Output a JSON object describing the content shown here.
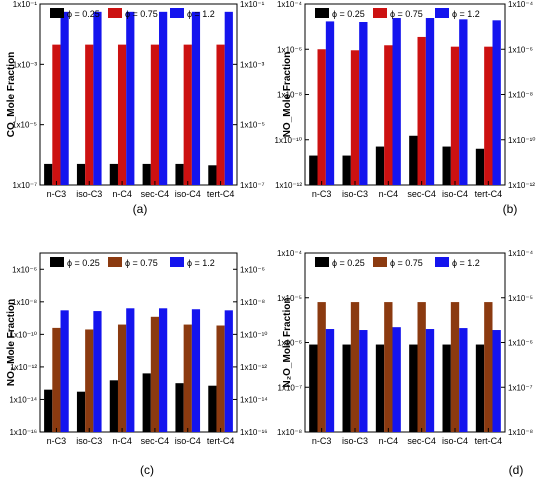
{
  "colors": {
    "phi025": "#000000",
    "phi075": "#cc1111",
    "phi075_b": "#8b3a10",
    "phi12": "#1414ee"
  },
  "legend": {
    "phi025": "ϕ = 0.25",
    "phi075": "ϕ = 0.75",
    "phi12": "ϕ = 1.2"
  },
  "chart_data": [
    {
      "type": "bar",
      "panel_label": "(a)",
      "ylabel": "CO_Mole Fraction",
      "yscale": "log",
      "ylim": [
        1e-07,
        0.1
      ],
      "yticks": [
        "1x10⁻⁷",
        "1x10⁻⁵",
        "1x10⁻³",
        "1x10⁻¹"
      ],
      "categories": [
        "n-C3",
        "iso-C3",
        "n-C4",
        "sec-C4",
        "iso-C4",
        "tert-C4"
      ],
      "legend_position": "top",
      "series": [
        {
          "name": "ϕ = 0.25",
          "values": [
            5e-07,
            5e-07,
            5e-07,
            5e-07,
            5e-07,
            4.5e-07
          ]
        },
        {
          "name": "ϕ = 0.75",
          "values": [
            0.0045,
            0.0045,
            0.0045,
            0.0045,
            0.0045,
            0.0045
          ]
        },
        {
          "name": "ϕ = 1.2",
          "values": [
            0.055,
            0.055,
            0.055,
            0.055,
            0.055,
            0.055
          ]
        }
      ]
    },
    {
      "type": "bar",
      "panel_label": "(b)",
      "ylabel": "NO_Mole Fraction",
      "yscale": "log",
      "ylim": [
        1e-12,
        0.0001
      ],
      "yticks": [
        "1x10⁻¹²",
        "1x10⁻¹⁰",
        "1x10⁻⁸",
        "1x10⁻⁶",
        "1x10⁻⁴"
      ],
      "categories": [
        "n-C3",
        "iso-C3",
        "n-C4",
        "sec-C4",
        "iso-C4",
        "tert-C4"
      ],
      "legend_position": "top",
      "series": [
        {
          "name": "ϕ = 0.25",
          "values": [
            2e-11,
            2e-11,
            5e-11,
            1.5e-10,
            5e-11,
            4e-11
          ]
        },
        {
          "name": "ϕ = 0.75",
          "values": [
            1e-06,
            9e-07,
            1.5e-06,
            3.5e-06,
            1.3e-06,
            1.3e-06
          ]
        },
        {
          "name": "ϕ = 1.2",
          "values": [
            1.7e-05,
            1.6e-05,
            2.4e-05,
            2.4e-05,
            2.1e-05,
            1.9e-05
          ]
        }
      ]
    },
    {
      "type": "bar",
      "panel_label": "(c)",
      "ylabel": "NO₂ Mole Fraction",
      "yscale": "log",
      "ylim": [
        1e-16,
        1e-05
      ],
      "yticks": [
        "1x10⁻¹⁶",
        "1x10⁻¹⁴",
        "1x10⁻¹²",
        "1x10⁻¹⁰",
        "1x10⁻⁸",
        "1x10⁻⁶"
      ],
      "categories": [
        "n-C3",
        "iso-C3",
        "n-C4",
        "sec-C4",
        "iso-C4",
        "tert-C4"
      ],
      "legend_position": "top",
      "series": [
        {
          "name": "ϕ = 0.25",
          "values": [
            4e-14,
            3e-14,
            1.5e-13,
            4e-13,
            1e-13,
            7e-14
          ]
        },
        {
          "name": "ϕ = 0.75",
          "values": [
            2.5e-10,
            2e-10,
            4e-10,
            1.2e-09,
            4e-10,
            3.5e-10
          ]
        },
        {
          "name": "ϕ = 1.2",
          "values": [
            3e-09,
            2.7e-09,
            4e-09,
            4e-09,
            3.5e-09,
            3e-09
          ]
        }
      ]
    },
    {
      "type": "bar",
      "panel_label": "(d)",
      "ylabel": "N₂O_Mole Fraction",
      "yscale": "log",
      "ylim": [
        1e-08,
        0.0001
      ],
      "yticks": [
        "1x10⁻⁸",
        "1x10⁻⁷",
        "1x10⁻⁶",
        "1x10⁻⁵",
        "1x10⁻⁴"
      ],
      "categories": [
        "n-C3",
        "iso-C3",
        "n-C4",
        "sec-C4",
        "iso-C4",
        "tert-C4"
      ],
      "legend_position": "top",
      "series": [
        {
          "name": "ϕ = 0.25",
          "values": [
            9e-07,
            9e-07,
            9e-07,
            9e-07,
            9e-07,
            9e-07
          ]
        },
        {
          "name": "ϕ = 0.75",
          "values": [
            8e-06,
            8e-06,
            8e-06,
            8e-06,
            8e-06,
            8e-06
          ]
        },
        {
          "name": "ϕ = 1.2",
          "values": [
            2e-06,
            1.9e-06,
            2.2e-06,
            2e-06,
            2.1e-06,
            1.9e-06
          ]
        }
      ]
    }
  ]
}
